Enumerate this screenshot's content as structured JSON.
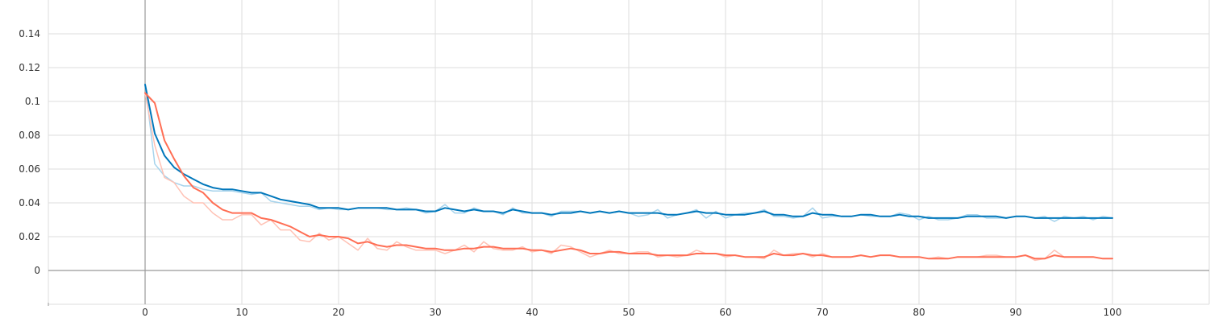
{
  "chart_data": {
    "type": "line",
    "title": "",
    "xlabel": "",
    "ylabel": "",
    "xlim": [
      -10,
      110
    ],
    "ylim": [
      -0.02,
      0.16
    ],
    "grid": true,
    "x_ticks": [
      0,
      10,
      20,
      30,
      40,
      50,
      60,
      70,
      80,
      90,
      100
    ],
    "x_tick_labels": [
      "0",
      "10",
      "20",
      "30",
      "40",
      "50",
      "60",
      "70",
      "80",
      "90",
      "100"
    ],
    "y_ticks": [
      0,
      0.02,
      0.04,
      0.06,
      0.08,
      0.1,
      0.12,
      0.14
    ],
    "y_tick_labels": [
      "0",
      "0.02",
      "0.04",
      "0.06",
      "0.08",
      "0.1",
      "0.12",
      "0.14"
    ],
    "colors": {
      "blue_smoothed": "#0077bb",
      "blue_raw": "#a6d3ec",
      "orange_smoothed": "#ff6e54",
      "orange_raw": "#ffc2b5",
      "grid": "#dddddd",
      "axis": "#999999"
    },
    "x": [
      0,
      1,
      2,
      3,
      4,
      5,
      6,
      7,
      8,
      9,
      10,
      11,
      12,
      13,
      14,
      15,
      16,
      17,
      18,
      19,
      20,
      21,
      22,
      23,
      24,
      25,
      26,
      27,
      28,
      29,
      30,
      31,
      32,
      33,
      34,
      35,
      36,
      37,
      38,
      39,
      40,
      41,
      42,
      43,
      44,
      45,
      46,
      47,
      48,
      49,
      50,
      51,
      52,
      53,
      54,
      55,
      56,
      57,
      58,
      59,
      60,
      61,
      62,
      63,
      64,
      65,
      66,
      67,
      68,
      69,
      70,
      71,
      72,
      73,
      74,
      75,
      76,
      77,
      78,
      79,
      80,
      81,
      82,
      83,
      84,
      85,
      86,
      87,
      88,
      89,
      90,
      91,
      92,
      93,
      94,
      95,
      96,
      97,
      98,
      99,
      100
    ],
    "series": [
      {
        "role": "blue-raw",
        "values": [
          0.11,
          0.063,
          0.056,
          0.052,
          0.05,
          0.05,
          0.048,
          0.047,
          0.047,
          0.047,
          0.046,
          0.045,
          0.046,
          0.041,
          0.04,
          0.039,
          0.038,
          0.038,
          0.036,
          0.037,
          0.036,
          0.036,
          0.037,
          0.037,
          0.037,
          0.036,
          0.036,
          0.037,
          0.036,
          0.034,
          0.035,
          0.039,
          0.034,
          0.034,
          0.037,
          0.035,
          0.035,
          0.033,
          0.037,
          0.034,
          0.034,
          0.034,
          0.032,
          0.035,
          0.035,
          0.035,
          0.034,
          0.035,
          0.034,
          0.035,
          0.034,
          0.032,
          0.033,
          0.036,
          0.031,
          0.033,
          0.034,
          0.036,
          0.031,
          0.035,
          0.031,
          0.033,
          0.034,
          0.034,
          0.036,
          0.032,
          0.032,
          0.031,
          0.032,
          0.037,
          0.031,
          0.032,
          0.032,
          0.032,
          0.033,
          0.032,
          0.032,
          0.032,
          0.034,
          0.033,
          0.03,
          0.032,
          0.03,
          0.03,
          0.031,
          0.033,
          0.033,
          0.031,
          0.031,
          0.031,
          0.032,
          0.032,
          0.031,
          0.032,
          0.029,
          0.032,
          0.031,
          0.032,
          0.03,
          0.032,
          0.031
        ]
      },
      {
        "role": "orange-raw",
        "values": [
          0.105,
          0.074,
          0.055,
          0.052,
          0.044,
          0.04,
          0.04,
          0.034,
          0.03,
          0.03,
          0.033,
          0.033,
          0.027,
          0.03,
          0.024,
          0.024,
          0.018,
          0.017,
          0.022,
          0.018,
          0.02,
          0.016,
          0.012,
          0.019,
          0.013,
          0.012,
          0.017,
          0.014,
          0.012,
          0.012,
          0.012,
          0.01,
          0.012,
          0.015,
          0.011,
          0.017,
          0.013,
          0.012,
          0.012,
          0.014,
          0.011,
          0.012,
          0.01,
          0.015,
          0.014,
          0.011,
          0.008,
          0.01,
          0.012,
          0.01,
          0.01,
          0.011,
          0.011,
          0.008,
          0.009,
          0.008,
          0.009,
          0.012,
          0.01,
          0.01,
          0.008,
          0.009,
          0.008,
          0.008,
          0.007,
          0.012,
          0.009,
          0.01,
          0.01,
          0.008,
          0.01,
          0.008,
          0.008,
          0.008,
          0.009,
          0.008,
          0.009,
          0.009,
          0.008,
          0.008,
          0.008,
          0.007,
          0.008,
          0.007,
          0.008,
          0.008,
          0.008,
          0.009,
          0.009,
          0.008,
          0.008,
          0.009,
          0.006,
          0.007,
          0.012,
          0.008,
          0.008,
          0.008,
          0.008,
          0.007,
          0.007
        ]
      },
      {
        "role": "blue-smoothed",
        "values": [
          0.11,
          0.081,
          0.068,
          0.061,
          0.057,
          0.054,
          0.051,
          0.049,
          0.048,
          0.048,
          0.047,
          0.046,
          0.046,
          0.044,
          0.042,
          0.041,
          0.04,
          0.039,
          0.037,
          0.037,
          0.037,
          0.036,
          0.037,
          0.037,
          0.037,
          0.037,
          0.036,
          0.036,
          0.036,
          0.035,
          0.035,
          0.037,
          0.036,
          0.035,
          0.036,
          0.035,
          0.035,
          0.034,
          0.036,
          0.035,
          0.034,
          0.034,
          0.033,
          0.034,
          0.034,
          0.035,
          0.034,
          0.035,
          0.034,
          0.035,
          0.034,
          0.034,
          0.034,
          0.034,
          0.033,
          0.033,
          0.034,
          0.035,
          0.034,
          0.034,
          0.033,
          0.033,
          0.033,
          0.034,
          0.035,
          0.033,
          0.033,
          0.032,
          0.032,
          0.034,
          0.033,
          0.033,
          0.032,
          0.032,
          0.033,
          0.033,
          0.032,
          0.032,
          0.033,
          0.032,
          0.032,
          0.031,
          0.031,
          0.031,
          0.031,
          0.032,
          0.032,
          0.032,
          0.032,
          0.031,
          0.032,
          0.032,
          0.031,
          0.031,
          0.031,
          0.031,
          0.031,
          0.031,
          0.031,
          0.031,
          0.031
        ]
      },
      {
        "role": "orange-smoothed",
        "values": [
          0.105,
          0.099,
          0.077,
          0.066,
          0.056,
          0.049,
          0.046,
          0.04,
          0.036,
          0.034,
          0.034,
          0.034,
          0.031,
          0.03,
          0.028,
          0.026,
          0.023,
          0.02,
          0.021,
          0.02,
          0.02,
          0.019,
          0.016,
          0.017,
          0.015,
          0.014,
          0.015,
          0.015,
          0.014,
          0.013,
          0.013,
          0.012,
          0.012,
          0.013,
          0.013,
          0.014,
          0.014,
          0.013,
          0.013,
          0.013,
          0.012,
          0.012,
          0.011,
          0.012,
          0.013,
          0.012,
          0.01,
          0.01,
          0.011,
          0.011,
          0.01,
          0.01,
          0.01,
          0.009,
          0.009,
          0.009,
          0.009,
          0.01,
          0.01,
          0.01,
          0.009,
          0.009,
          0.008,
          0.008,
          0.008,
          0.01,
          0.009,
          0.009,
          0.01,
          0.009,
          0.009,
          0.008,
          0.008,
          0.008,
          0.009,
          0.008,
          0.009,
          0.009,
          0.008,
          0.008,
          0.008,
          0.007,
          0.007,
          0.007,
          0.008,
          0.008,
          0.008,
          0.008,
          0.008,
          0.008,
          0.008,
          0.009,
          0.007,
          0.007,
          0.009,
          0.008,
          0.008,
          0.008,
          0.008,
          0.007,
          0.007
        ]
      }
    ]
  }
}
